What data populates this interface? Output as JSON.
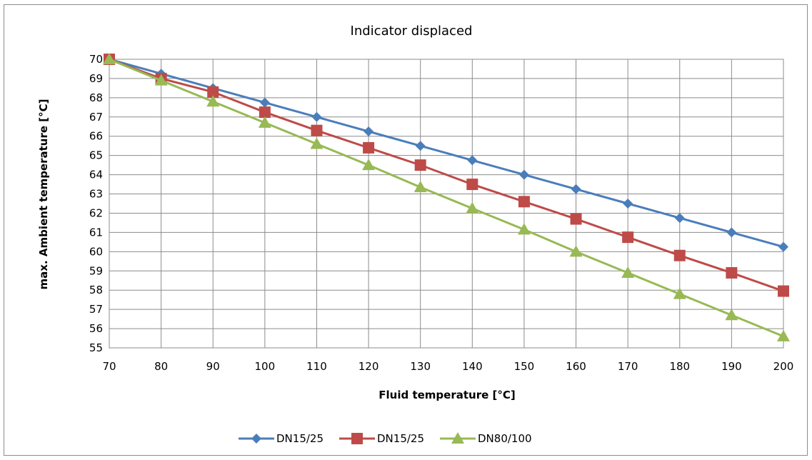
{
  "chart_data": {
    "type": "line",
    "title": "Indicator displaced",
    "xlabel": "Fluid temperature [°C]",
    "ylabel": "max. Ambient temperature [°C]",
    "x": [
      70,
      80,
      90,
      100,
      110,
      120,
      130,
      140,
      150,
      160,
      170,
      180,
      190,
      200
    ],
    "xlim": [
      70,
      200
    ],
    "ylim": [
      55,
      70
    ],
    "xticks": [
      "70",
      "80",
      "90",
      "100",
      "110",
      "120",
      "130",
      "140",
      "150",
      "160",
      "170",
      "180",
      "190",
      "200"
    ],
    "yticks": [
      "55",
      "56",
      "57",
      "58",
      "59",
      "60",
      "61",
      "62",
      "63",
      "64",
      "65",
      "66",
      "67",
      "68",
      "69",
      "70"
    ],
    "grid": true,
    "legend_position": "bottom",
    "series": [
      {
        "name": "DN15/25",
        "color": "#4a7ebb",
        "marker": "diamond",
        "values": [
          70.0,
          69.25,
          68.5,
          67.75,
          67.0,
          66.25,
          65.5,
          64.75,
          64.0,
          63.25,
          62.5,
          61.75,
          61.0,
          60.25
        ]
      },
      {
        "name": "DN15/25",
        "color": "#be4b48",
        "marker": "square",
        "values": [
          70.0,
          69.0,
          68.3,
          67.25,
          66.3,
          65.4,
          64.5,
          63.5,
          62.6,
          61.7,
          60.75,
          59.8,
          58.9,
          57.95
        ]
      },
      {
        "name": "DN80/100",
        "color": "#98b954",
        "marker": "triangle",
        "values": [
          70.0,
          68.9,
          67.8,
          66.7,
          65.6,
          64.5,
          63.35,
          62.25,
          61.15,
          60.0,
          58.9,
          57.8,
          56.7,
          55.6
        ]
      }
    ]
  }
}
